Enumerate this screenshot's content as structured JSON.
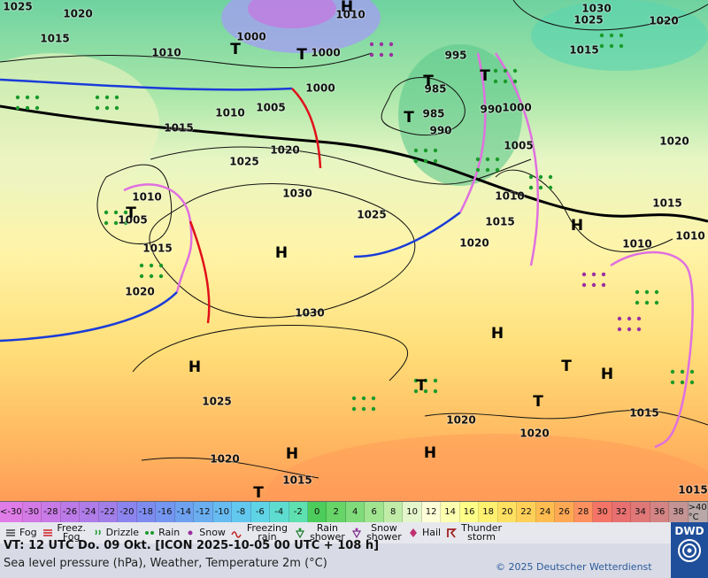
{
  "map": {
    "isobar_labels": [
      "1025",
      "1020",
      "1015",
      "1010",
      "1000",
      "1010",
      "1000",
      "1000",
      "995",
      "1030",
      "1025",
      "1020",
      "1015",
      "985",
      "985",
      "990",
      "990",
      "1000",
      "1010",
      "1005",
      "1015",
      "1020",
      "1025",
      "1030",
      "1010",
      "1005",
      "1015",
      "1020",
      "1025",
      "1020",
      "1015",
      "1010",
      "1005",
      "1020",
      "1015",
      "1010",
      "1010",
      "1030",
      "1025",
      "1020",
      "1020",
      "1020",
      "1015",
      "1015",
      "1015"
    ],
    "pressure_centers": [
      "H",
      "T",
      "T",
      "T",
      "T",
      "T",
      "T",
      "H",
      "H",
      "H",
      "H",
      "H",
      "T",
      "T",
      "T",
      "H",
      "H",
      "T"
    ]
  },
  "temperature_scale": {
    "labels": [
      "<-30",
      "-30",
      "-28",
      "-26",
      "-24",
      "-22",
      "-20",
      "-18",
      "-16",
      "-14",
      "-12",
      "-10",
      "-8",
      "-6",
      "-4",
      "-2",
      "0",
      "2",
      "4",
      "6",
      "8",
      "10",
      "12",
      "14",
      "16",
      "18",
      "20",
      "22",
      "24",
      "26",
      "28",
      "30",
      "32",
      "34",
      "36",
      "38",
      ">40 °C"
    ],
    "colors": [
      "#e07ce8",
      "#d47ae6",
      "#c87ae6",
      "#bc7ae8",
      "#b07ce8",
      "#a27ee8",
      "#8c84ee",
      "#7e8cf0",
      "#7496f0",
      "#6ea2f0",
      "#6aaef0",
      "#66bcf0",
      "#62c8ee",
      "#5ed4e6",
      "#5edcd0",
      "#5ee0b0",
      "#4ccc5a",
      "#66d466",
      "#80dc7a",
      "#a0e490",
      "#c0eca8",
      "#e6f6cc",
      "#ffffd8",
      "#ffffb0",
      "#ffff88",
      "#fff070",
      "#ffe060",
      "#ffd058",
      "#ffbc50",
      "#ffa854",
      "#ff9060",
      "#f47468",
      "#e87070",
      "#e07878",
      "#d48484",
      "#c49494",
      "#b8a8a8"
    ]
  },
  "legend": [
    "Fog",
    "Freez. Fog",
    "Drizzle",
    "Rain",
    "Snow",
    "Freezing rain",
    "Rain shower",
    "Snow shower",
    "Hail",
    "Thunder storm"
  ],
  "footer": {
    "valid_time": "VT: 12 UTC Do.  09 Okt. [ICON 2025-10-05  00 UTC + 108 h]",
    "description": "Sea level pressure (hPa), Weather, Temperature 2m (°C)",
    "copyright": "© 2025 Deutscher Wetterdienst",
    "logo": "DWD"
  }
}
